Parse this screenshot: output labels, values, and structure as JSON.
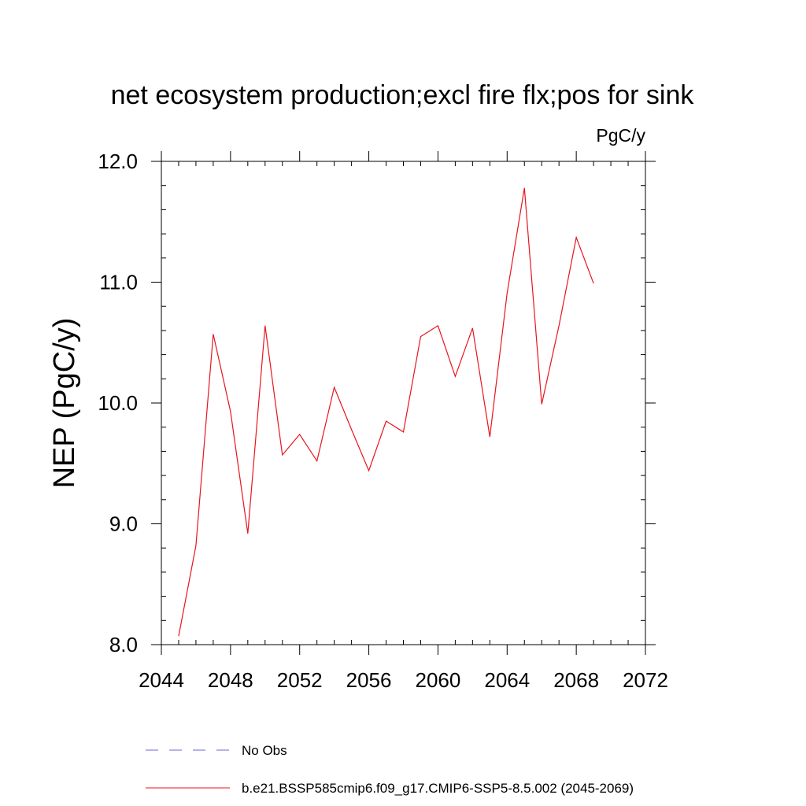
{
  "chart_data": {
    "type": "line",
    "title": "net ecosystem production;excl fire flx;pos for sink",
    "units_label": "PgC/y",
    "ylabel": "NEP  (PgC/y)",
    "xlabel": "",
    "xlim": [
      2044,
      2072
    ],
    "ylim": [
      8.0,
      12.0
    ],
    "x_ticks": [
      2044,
      2048,
      2052,
      2056,
      2060,
      2064,
      2068,
      2072
    ],
    "y_ticks": [
      8.0,
      9.0,
      10.0,
      11.0,
      12.0
    ],
    "x_tick_labels": [
      "2044",
      "2048",
      "2052",
      "2056",
      "2060",
      "2064",
      "2068",
      "2072"
    ],
    "y_tick_labels": [
      "8.0",
      "9.0",
      "10.0",
      "11.0",
      "12.0"
    ],
    "x_minor_step": 1,
    "y_minor_step": 0.2,
    "grid": false,
    "legend_position": "bottom",
    "series": [
      {
        "name": "No Obs",
        "color": "#6a6ad0",
        "dash": "dashed",
        "x": [],
        "values": []
      },
      {
        "name": "b.e21.BSSP585cmip6.f09_g17.CMIP6-SSP5-8.5.002 (2045-2069)",
        "color": "#e8141c",
        "dash": "solid",
        "x": [
          2045,
          2046,
          2047,
          2048,
          2049,
          2050,
          2051,
          2052,
          2053,
          2054,
          2055,
          2056,
          2057,
          2058,
          2059,
          2060,
          2061,
          2062,
          2063,
          2064,
          2065,
          2066,
          2067,
          2068,
          2069
        ],
        "values": [
          8.07,
          8.82,
          10.57,
          9.93,
          8.92,
          10.64,
          9.57,
          9.74,
          9.52,
          10.13,
          9.78,
          9.44,
          9.85,
          9.76,
          10.55,
          10.64,
          10.22,
          10.62,
          9.72,
          10.91,
          11.78,
          9.99,
          10.64,
          11.37,
          10.99
        ]
      }
    ]
  }
}
